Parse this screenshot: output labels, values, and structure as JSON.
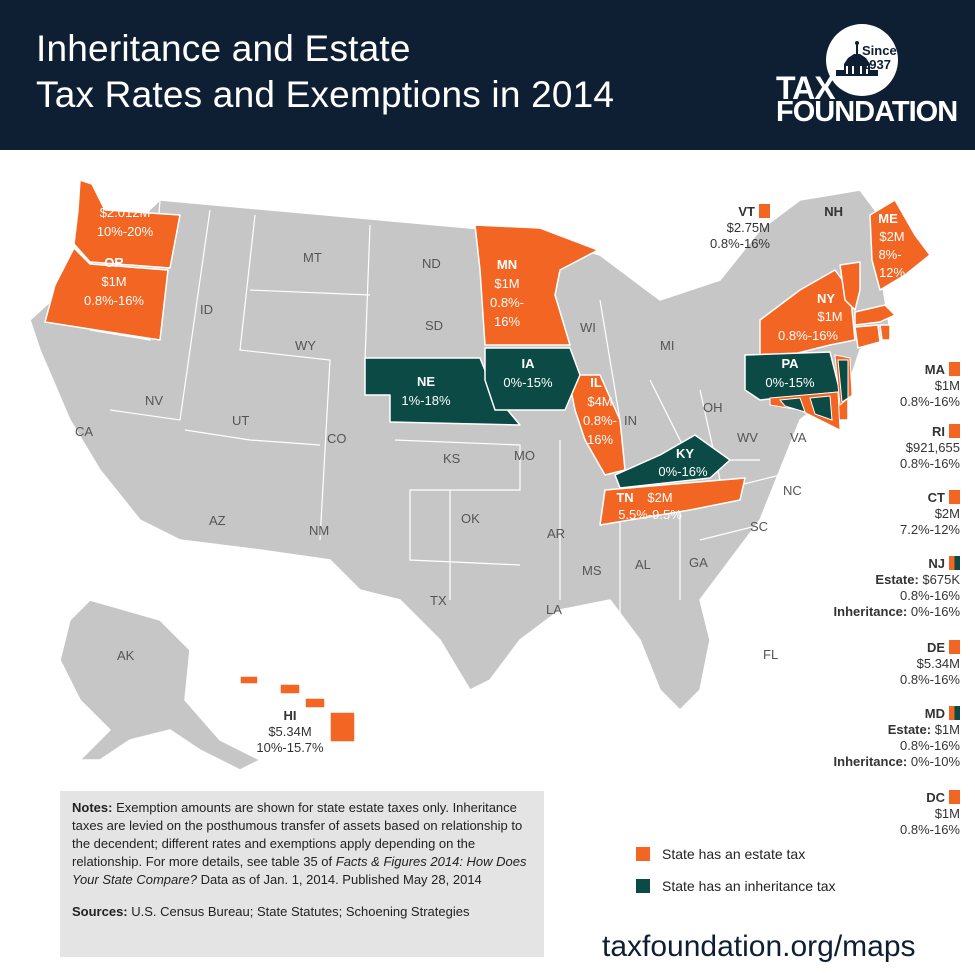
{
  "header": {
    "title_line1": "Inheritance and Estate",
    "title_line2": "Tax Rates and Exemptions in 2014"
  },
  "logo": {
    "since": "Since",
    "year": "1937",
    "line1": "TAX",
    "line2": "FOUNDATION"
  },
  "colors": {
    "estate": "#f26522",
    "inheritance": "#0b4a45",
    "neither": "#c6c6c6",
    "header": "#0f1f33"
  },
  "states_gray": [
    "MT",
    "ND",
    "ID",
    "SD",
    "WY",
    "WI",
    "MI",
    "NV",
    "UT",
    "CO",
    "CA",
    "KS",
    "MO",
    "IN",
    "OH",
    "WV",
    "VA",
    "NC",
    "AZ",
    "NM",
    "OK",
    "AR",
    "SC",
    "TX",
    "MS",
    "AL",
    "GA",
    "LA",
    "FL",
    "AK",
    "NH"
  ],
  "map_labels": {
    "WA": {
      "name": "WA",
      "exemption": "$2.012M",
      "rate": "10%-20%"
    },
    "OR": {
      "name": "OR",
      "exemption": "$1M",
      "rate": "0.8%-16%"
    },
    "MN": {
      "name": "MN",
      "exemption": "$1M",
      "rate1": "0.8%-",
      "rate2": "16%"
    },
    "NE": {
      "name": "NE",
      "rate": "1%-18%"
    },
    "IA": {
      "name": "IA",
      "rate": "0%-15%"
    },
    "IL": {
      "name": "IL",
      "exemption": "$4M",
      "rate1": "0.8%-",
      "rate2": "16%"
    },
    "KY": {
      "name": "KY",
      "rate": "0%-16%"
    },
    "TN": {
      "name": "TN",
      "exemption": "$2M",
      "rate": "5.5%-9.5%"
    },
    "PA": {
      "name": "PA",
      "rate": "0%-15%"
    },
    "NY": {
      "name": "NY",
      "exemption": "$1M",
      "rate": "0.8%-16%"
    },
    "ME": {
      "name": "ME",
      "exemption": "$2M",
      "rate1": "8%-",
      "rate2": "12%"
    }
  },
  "side_labels": {
    "VT": {
      "name": "VT",
      "exemption": "$2.75M",
      "rate": "0.8%-16%"
    },
    "NH": {
      "name": "NH"
    },
    "MA": {
      "name": "MA",
      "exemption": "$1M",
      "rate": "0.8%-16%"
    },
    "RI": {
      "name": "RI",
      "exemption": "$921,655",
      "rate": "0.8%-16%"
    },
    "CT": {
      "name": "CT",
      "exemption": "$2M",
      "rate": "7.2%-12%"
    },
    "NJ": {
      "name": "NJ",
      "estate_label": "Estate:",
      "estate": "$675K",
      "estate_rate": "0.8%-16%",
      "inh_label": "Inheritance:",
      "inh_rate": "0%-16%"
    },
    "DE": {
      "name": "DE",
      "exemption": "$5.34M",
      "rate": "0.8%-16%"
    },
    "MD": {
      "name": "MD",
      "estate_label": "Estate:",
      "estate": "$1M",
      "estate_rate": "0.8%-16%",
      "inh_label": "Inheritance:",
      "inh_rate": "0%-10%"
    },
    "DC": {
      "name": "DC",
      "exemption": "$1M",
      "rate": "0.8%-16%"
    },
    "HI": {
      "name": "HI",
      "exemption": "$5.34M",
      "rate": "10%-15.7%"
    }
  },
  "notes": {
    "label": "Notes:",
    "text1": "Exemption amounts are shown for state estate taxes only. Inheritance taxes are levied on the posthumous transfer of assets based on relationship to the decendent; different rates and exemptions apply depending on the relationship. For more details, see table 35 of ",
    "italic": "Facts & Figures 2014: How Does Your State Compare?",
    "text2": " Data as of Jan. 1, 2014. Published May 28, 2014",
    "sources_label": "Sources:",
    "sources": "U.S. Census Bureau; State Statutes; Schoening Strategies"
  },
  "legend": {
    "estate": "State has an estate tax",
    "inheritance": "State has an inheritance tax"
  },
  "url": "taxfoundation.org/maps"
}
